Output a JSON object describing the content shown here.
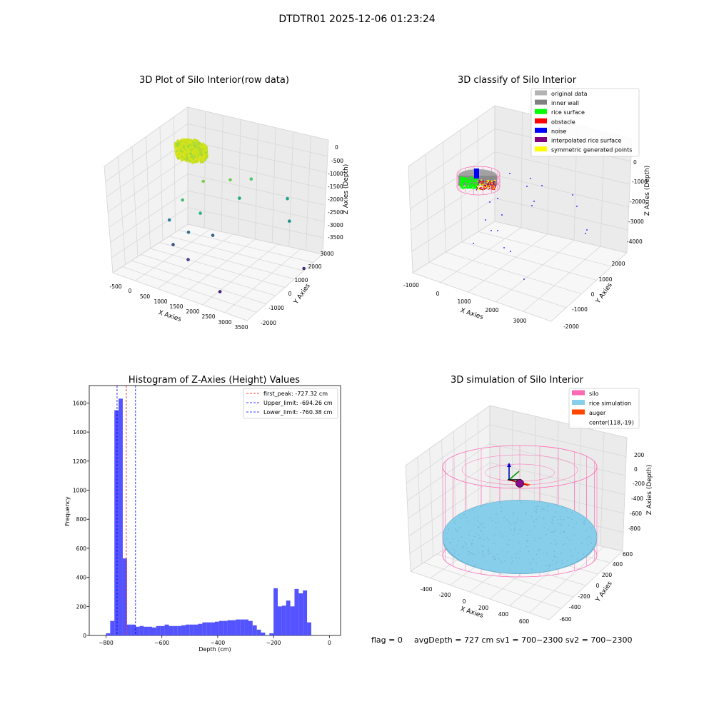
{
  "suptitle": "DTDTR01 2025-12-06 01:23:24",
  "panel1": {
    "title": "3D Plot of Silo Interior(row data)",
    "xlabel": "X Axies",
    "ylabel": "Y Axies",
    "zlabel": "Z Axies (Depth)",
    "xticks": [
      "-500",
      "0",
      "500",
      "1000",
      "1500",
      "2000",
      "2500",
      "3000",
      "3500"
    ],
    "yticks": [
      "-2000",
      "-1000",
      "0",
      "1000",
      "2000",
      "3000"
    ],
    "zticks": [
      "0",
      "-500",
      "-1000",
      "-1500",
      "-2000",
      "-2500",
      "-3000",
      "-3500"
    ]
  },
  "panel2": {
    "title": "3D classify of Silo Interior",
    "xlabel": "X Axies",
    "ylabel": "Y Axies",
    "zlabel": "Z Axies (Depth)",
    "xticks": [
      "-1000",
      "0",
      "1000",
      "2000",
      "3000"
    ],
    "yticks": [
      "-2000",
      "-1000",
      "0",
      "1000",
      "2000"
    ],
    "zticks": [
      "0",
      "-1000",
      "-2000",
      "-3000",
      "-4000"
    ],
    "legend": [
      {
        "label": "original data",
        "color": "#b3b3b3"
      },
      {
        "label": "inner wall",
        "color": "#808080"
      },
      {
        "label": "rice surface",
        "color": "#00ff00"
      },
      {
        "label": "obstacle",
        "color": "#ff0000"
      },
      {
        "label": "noise",
        "color": "#0000ff"
      },
      {
        "label": "interpolated rice surface",
        "color": "#800080"
      },
      {
        "label": "symmetric generated points",
        "color": "#ffff00"
      }
    ]
  },
  "panel3": {
    "title": "Histogram of Z-Axies (Height) Values",
    "xlabel": "Depth (cm)",
    "ylabel": "Frequency",
    "xticks": [
      "−800",
      "−600",
      "−400",
      "−200",
      "0"
    ],
    "yticks": [
      "0",
      "200",
      "400",
      "600",
      "800",
      "1000",
      "1200",
      "1400",
      "1600"
    ],
    "legend": [
      {
        "label": "first_peak: -727.32 cm",
        "color": "#ff0000"
      },
      {
        "label": "Upper_limit: -694.26 cm",
        "color": "#0000ff"
      },
      {
        "label": "Lower_limit: -760.38 cm",
        "color": "#0000ff"
      }
    ]
  },
  "panel4": {
    "title": "3D simulation of Silo Interior",
    "xlabel": "X Axies",
    "ylabel": "Y Axies",
    "zlabel": "Z Axies (Depth)",
    "xticks": [
      "-400",
      "-200",
      "0",
      "200",
      "400",
      "600"
    ],
    "yticks": [
      "-600",
      "-400",
      "-200",
      "0",
      "200",
      "400",
      "600"
    ],
    "zticks": [
      "200",
      "0",
      "-200",
      "-400",
      "-600",
      "-800"
    ],
    "legend": [
      {
        "label": "silo",
        "color": "#ff69b4"
      },
      {
        "label": "rice simulation",
        "color": "#87ceeb"
      },
      {
        "label": "auger",
        "color": "#ff4500"
      },
      {
        "label": "center(118,-19)",
        "color": ""
      }
    ]
  },
  "status": {
    "flag": "flag = 0",
    "avg": "avgDepth = 727 cm  sv1 = 700~2300  sv2 = 700~2300"
  },
  "chart_data": [
    {
      "type": "scatter",
      "title": "3D Plot of Silo Interior(row data)",
      "xlabel": "X Axies",
      "ylabel": "Y Axies",
      "zlabel": "Z Axies (Depth)",
      "xlim": [
        -700,
        3600
      ],
      "ylim": [
        -2200,
        3200
      ],
      "zlim": [
        -3700,
        100
      ],
      "grid": true,
      "note_series": "dense cluster of several thousand points near z = -700 around the silo, plus sparse scattered points",
      "points": [
        {
          "x": 600,
          "y": 1800,
          "z": -1200
        },
        {
          "x": 1300,
          "y": 2200,
          "z": -1000
        },
        {
          "x": 1800,
          "y": 2600,
          "z": -900
        },
        {
          "x": 300,
          "y": 900,
          "z": -1700
        },
        {
          "x": 900,
          "y": 800,
          "z": -1900
        },
        {
          "x": 1700,
          "y": 1900,
          "z": -1400
        },
        {
          "x": 2800,
          "y": 2900,
          "z": -1300
        },
        {
          "x": 2900,
          "y": 2700,
          "z": -2000
        },
        {
          "x": 100,
          "y": 300,
          "z": -2300
        },
        {
          "x": 700,
          "y": 300,
          "z": -2500
        },
        {
          "x": 1300,
          "y": 700,
          "z": -2500
        },
        {
          "x": 400,
          "y": -200,
          "z": -2900
        },
        {
          "x": 1000,
          "y": -500,
          "z": -3100
        },
        {
          "x": 3300,
          "y": 2600,
          "z": -3500
        },
        {
          "x": 2400,
          "y": -1400,
          "z": -3400
        }
      ]
    },
    {
      "type": "scatter",
      "title": "3D classify of Silo Interior",
      "xlabel": "X Axies",
      "ylabel": "Y Axies",
      "zlabel": "Z Axies (Depth)",
      "xlim": [
        -1100,
        3600
      ],
      "ylim": [
        -2100,
        2400
      ],
      "zlim": [
        -4100,
        100
      ],
      "grid": true,
      "series": [
        {
          "name": "original data",
          "color": "#b3b3b3"
        },
        {
          "name": "inner wall",
          "color": "#808080"
        },
        {
          "name": "rice surface",
          "color": "#00ff00"
        },
        {
          "name": "obstacle",
          "color": "#ff0000"
        },
        {
          "name": "noise",
          "color": "#0000ff"
        },
        {
          "name": "interpolated rice surface",
          "color": "#800080"
        },
        {
          "name": "symmetric generated points",
          "color": "#ffff00"
        }
      ]
    },
    {
      "type": "bar",
      "title": "Histogram of Z-Axies (Height) Values",
      "xlabel": "Depth (cm)",
      "ylabel": "Frequency",
      "xlim": [
        -860,
        40
      ],
      "ylim": [
        0,
        1720
      ],
      "bin_width": 15,
      "bin_start": -800,
      "values": [
        15,
        100,
        1550,
        1630,
        530,
        75,
        75,
        60,
        65,
        60,
        60,
        55,
        65,
        65,
        75,
        65,
        65,
        65,
        70,
        75,
        75,
        75,
        80,
        90,
        90,
        90,
        95,
        100,
        100,
        105,
        105,
        110,
        110,
        110,
        100,
        70,
        40,
        20,
        0,
        15,
        325,
        200,
        205,
        240,
        200,
        320,
        290,
        310,
        90
      ],
      "lines": [
        {
          "name": "first_peak: -727.32 cm",
          "x": -727.32,
          "color": "#ff0000"
        },
        {
          "name": "Upper_limit: -694.26 cm",
          "x": -694.26,
          "color": "#0000ff"
        },
        {
          "name": "Lower_limit: -760.38 cm",
          "x": -760.38,
          "color": "#0000ff"
        }
      ],
      "legend": "top-right"
    },
    {
      "type": "scatter",
      "title": "3D simulation of Silo Interior",
      "xlabel": "X Axies",
      "ylabel": "Y Axies",
      "zlabel": "Z Axies (Depth)",
      "xlim": [
        -520,
        780
      ],
      "ylim": [
        -720,
        720
      ],
      "zlim": [
        -900,
        300
      ],
      "grid": true,
      "series": [
        {
          "name": "silo",
          "color": "#ff69b4"
        },
        {
          "name": "rice simulation",
          "color": "#87ceeb"
        },
        {
          "name": "auger",
          "color": "#ff4500"
        },
        {
          "name": "center(118,-19)"
        }
      ],
      "silo_radius": 600,
      "silo_top": 50,
      "silo_bottom": -900,
      "rice_level": -727,
      "center": [
        118,
        -19
      ]
    }
  ]
}
